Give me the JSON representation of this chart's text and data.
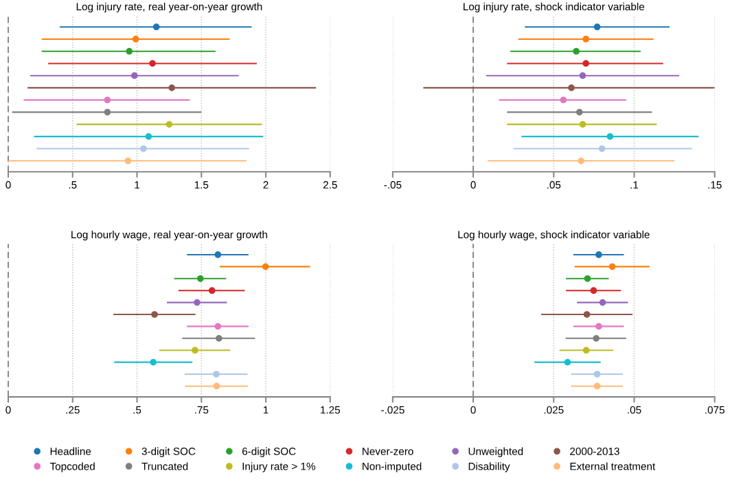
{
  "chart_data": [
    {
      "type": "scatter",
      "orientation": "horizontal",
      "title": "Log injury rate, real year-on-year growth",
      "categories": [
        null,
        null,
        null,
        null,
        null,
        null,
        null,
        null,
        null,
        null,
        null,
        null
      ],
      "xlim": [
        0,
        2.5
      ],
      "xticks": [
        0,
        {
          "value": 0.5,
          "label": ".5"
        },
        1,
        1.5,
        2,
        2.5
      ],
      "grid": "x",
      "tick_labels": "x",
      "marker": "circle",
      "legend": "bottom",
      "ref_lines": [
        {
          "axis": "x",
          "value": 0,
          "line_style": "dashed",
          "color": "#7f7f7f"
        }
      ],
      "series": [
        {
          "name": "Headline",
          "color": "#1f77b4",
          "values": [
            1.15,
            null,
            null,
            null,
            null,
            null,
            null,
            null,
            null,
            null,
            null,
            null
          ],
          "errors": [
            [
              0.4,
              1.89
            ],
            null,
            null,
            null,
            null,
            null,
            null,
            null,
            null,
            null,
            null,
            null
          ]
        },
        {
          "name": "3-digit SOC",
          "color": "#ff7f0e",
          "values": [
            null,
            0.99,
            null,
            null,
            null,
            null,
            null,
            null,
            null,
            null,
            null,
            null
          ],
          "errors": [
            null,
            [
              0.26,
              1.72
            ],
            null,
            null,
            null,
            null,
            null,
            null,
            null,
            null,
            null,
            null
          ]
        },
        {
          "name": "6-digit SOC",
          "color": "#2ca02c",
          "values": [
            null,
            null,
            0.94,
            null,
            null,
            null,
            null,
            null,
            null,
            null,
            null,
            null
          ],
          "errors": [
            null,
            null,
            [
              0.26,
              1.61
            ],
            null,
            null,
            null,
            null,
            null,
            null,
            null,
            null,
            null
          ]
        },
        {
          "name": "Never-zero",
          "color": "#d62728",
          "values": [
            null,
            null,
            null,
            1.12,
            null,
            null,
            null,
            null,
            null,
            null,
            null,
            null
          ],
          "errors": [
            null,
            null,
            null,
            [
              0.31,
              1.93
            ],
            null,
            null,
            null,
            null,
            null,
            null,
            null,
            null
          ]
        },
        {
          "name": "Unweighted",
          "color": "#9467bd",
          "values": [
            null,
            null,
            null,
            null,
            0.98,
            null,
            null,
            null,
            null,
            null,
            null,
            null
          ],
          "errors": [
            null,
            null,
            null,
            null,
            [
              0.17,
              1.79
            ],
            null,
            null,
            null,
            null,
            null,
            null,
            null
          ]
        },
        {
          "name": "2000-2013",
          "color": "#8c564b",
          "values": [
            null,
            null,
            null,
            null,
            null,
            1.27,
            null,
            null,
            null,
            null,
            null,
            null
          ],
          "errors": [
            null,
            null,
            null,
            null,
            null,
            [
              0.15,
              2.39
            ],
            null,
            null,
            null,
            null,
            null,
            null
          ]
        },
        {
          "name": "Topcoded",
          "color": "#e377c2",
          "values": [
            null,
            null,
            null,
            null,
            null,
            null,
            0.77,
            null,
            null,
            null,
            null,
            null
          ],
          "errors": [
            null,
            null,
            null,
            null,
            null,
            null,
            [
              0.12,
              1.41
            ],
            null,
            null,
            null,
            null,
            null
          ]
        },
        {
          "name": "Truncated",
          "color": "#7f7f7f",
          "values": [
            null,
            null,
            null,
            null,
            null,
            null,
            null,
            0.77,
            null,
            null,
            null,
            null
          ],
          "errors": [
            null,
            null,
            null,
            null,
            null,
            null,
            null,
            [
              0.03,
              1.5
            ],
            null,
            null,
            null,
            null
          ]
        },
        {
          "name": "Injury rate > 1%",
          "color": "#bcbd22",
          "values": [
            null,
            null,
            null,
            null,
            null,
            null,
            null,
            null,
            1.25,
            null,
            null,
            null
          ],
          "errors": [
            null,
            null,
            null,
            null,
            null,
            null,
            null,
            null,
            [
              0.53,
              1.97
            ],
            null,
            null,
            null
          ]
        },
        {
          "name": "Non-imputed",
          "color": "#17becf",
          "values": [
            null,
            null,
            null,
            null,
            null,
            null,
            null,
            null,
            null,
            1.09,
            null,
            null
          ],
          "errors": [
            null,
            null,
            null,
            null,
            null,
            null,
            null,
            null,
            null,
            [
              0.2,
              1.98
            ],
            null,
            null
          ]
        },
        {
          "name": "Disability",
          "color": "#aec7e8",
          "values": [
            null,
            null,
            null,
            null,
            null,
            null,
            null,
            null,
            null,
            null,
            1.05,
            null
          ],
          "errors": [
            null,
            null,
            null,
            null,
            null,
            null,
            null,
            null,
            null,
            null,
            [
              0.22,
              1.87
            ],
            null
          ]
        },
        {
          "name": "External treatment",
          "color": "#ffbb78",
          "values": [
            null,
            null,
            null,
            null,
            null,
            null,
            null,
            null,
            null,
            null,
            null,
            0.93
          ],
          "errors": [
            null,
            null,
            null,
            null,
            null,
            null,
            null,
            null,
            null,
            null,
            null,
            [
              0.0,
              1.85
            ]
          ]
        }
      ]
    },
    {
      "type": "scatter",
      "orientation": "horizontal",
      "title": "Log injury rate, shock indicator variable",
      "categories": [
        null,
        null,
        null,
        null,
        null,
        null,
        null,
        null,
        null,
        null,
        null,
        null
      ],
      "xlim": [
        -0.05,
        0.15
      ],
      "xticks": [
        {
          "value": -0.05,
          "label": "-.05"
        },
        0,
        {
          "value": 0.05,
          "label": ".05"
        },
        {
          "value": 0.1,
          "label": ".1"
        },
        {
          "value": 0.15,
          "label": ".15"
        }
      ],
      "grid": "x",
      "tick_labels": "x",
      "marker": "circle",
      "ref_lines": [
        {
          "axis": "x",
          "value": 0,
          "line_style": "dashed",
          "color": "#7f7f7f"
        }
      ],
      "series": [
        {
          "color": "#1f77b4",
          "values": [
            0.077,
            null,
            null,
            null,
            null,
            null,
            null,
            null,
            null,
            null,
            null,
            null
          ],
          "errors": [
            [
              0.032,
              0.122
            ],
            null,
            null,
            null,
            null,
            null,
            null,
            null,
            null,
            null,
            null,
            null
          ]
        },
        {
          "color": "#ff7f0e",
          "values": [
            null,
            0.07,
            null,
            null,
            null,
            null,
            null,
            null,
            null,
            null,
            null,
            null
          ],
          "errors": [
            null,
            [
              0.028,
              0.112
            ],
            null,
            null,
            null,
            null,
            null,
            null,
            null,
            null,
            null,
            null
          ]
        },
        {
          "color": "#2ca02c",
          "values": [
            null,
            null,
            0.064,
            null,
            null,
            null,
            null,
            null,
            null,
            null,
            null,
            null
          ],
          "errors": [
            null,
            null,
            [
              0.023,
              0.104
            ],
            null,
            null,
            null,
            null,
            null,
            null,
            null,
            null,
            null
          ]
        },
        {
          "color": "#d62728",
          "values": [
            null,
            null,
            null,
            0.07,
            null,
            null,
            null,
            null,
            null,
            null,
            null,
            null
          ],
          "errors": [
            null,
            null,
            null,
            [
              0.021,
              0.118
            ],
            null,
            null,
            null,
            null,
            null,
            null,
            null,
            null
          ]
        },
        {
          "color": "#9467bd",
          "values": [
            null,
            null,
            null,
            null,
            0.068,
            null,
            null,
            null,
            null,
            null,
            null,
            null
          ],
          "errors": [
            null,
            null,
            null,
            null,
            [
              0.008,
              0.128
            ],
            null,
            null,
            null,
            null,
            null,
            null,
            null
          ]
        },
        {
          "color": "#8c564b",
          "values": [
            null,
            null,
            null,
            null,
            null,
            0.061,
            null,
            null,
            null,
            null,
            null,
            null
          ],
          "errors": [
            null,
            null,
            null,
            null,
            null,
            [
              -0.031,
              0.15
            ],
            null,
            null,
            null,
            null,
            null,
            null
          ]
        },
        {
          "color": "#e377c2",
          "values": [
            null,
            null,
            null,
            null,
            null,
            null,
            0.056,
            null,
            null,
            null,
            null,
            null
          ],
          "errors": [
            null,
            null,
            null,
            null,
            null,
            null,
            [
              0.016,
              0.095
            ],
            null,
            null,
            null,
            null,
            null
          ]
        },
        {
          "color": "#7f7f7f",
          "values": [
            null,
            null,
            null,
            null,
            null,
            null,
            null,
            0.066,
            null,
            null,
            null,
            null
          ],
          "errors": [
            null,
            null,
            null,
            null,
            null,
            null,
            null,
            [
              0.021,
              0.111
            ],
            null,
            null,
            null,
            null
          ]
        },
        {
          "color": "#bcbd22",
          "values": [
            null,
            null,
            null,
            null,
            null,
            null,
            null,
            null,
            0.068,
            null,
            null,
            null
          ],
          "errors": [
            null,
            null,
            null,
            null,
            null,
            null,
            null,
            null,
            [
              0.021,
              0.114
            ],
            null,
            null,
            null
          ]
        },
        {
          "color": "#17becf",
          "values": [
            null,
            null,
            null,
            null,
            null,
            null,
            null,
            null,
            null,
            0.085,
            null,
            null
          ],
          "errors": [
            null,
            null,
            null,
            null,
            null,
            null,
            null,
            null,
            null,
            [
              0.03,
              0.14
            ],
            null,
            null
          ]
        },
        {
          "color": "#aec7e8",
          "values": [
            null,
            null,
            null,
            null,
            null,
            null,
            null,
            null,
            null,
            null,
            0.08,
            null
          ],
          "errors": [
            null,
            null,
            null,
            null,
            null,
            null,
            null,
            null,
            null,
            null,
            [
              0.025,
              0.136
            ],
            null
          ]
        },
        {
          "color": "#ffbb78",
          "values": [
            null,
            null,
            null,
            null,
            null,
            null,
            null,
            null,
            null,
            null,
            null,
            0.067
          ],
          "errors": [
            null,
            null,
            null,
            null,
            null,
            null,
            null,
            null,
            null,
            null,
            null,
            [
              0.009,
              0.125
            ]
          ]
        }
      ]
    },
    {
      "type": "scatter",
      "orientation": "horizontal",
      "title": "Log hourly wage, real year-on-year growth",
      "categories": [
        null,
        null,
        null,
        null,
        null,
        null,
        null,
        null,
        null,
        null,
        null,
        null
      ],
      "xlim": [
        0,
        1.25
      ],
      "xticks": [
        0,
        {
          "value": 0.25,
          "label": ".25"
        },
        {
          "value": 0.5,
          "label": ".5"
        },
        {
          "value": 0.75,
          "label": ".75"
        },
        1,
        1.25
      ],
      "grid": "x",
      "tick_labels": "x",
      "marker": "circle",
      "ref_lines": [
        {
          "axis": "x",
          "value": 0,
          "line_style": "dashed",
          "color": "#7f7f7f"
        }
      ],
      "series": [
        {
          "color": "#1f77b4",
          "values": [
            0.814,
            null,
            null,
            null,
            null,
            null,
            null,
            null,
            null,
            null,
            null,
            null
          ],
          "errors": [
            [
              0.694,
              0.933
            ],
            null,
            null,
            null,
            null,
            null,
            null,
            null,
            null,
            null,
            null,
            null
          ]
        },
        {
          "color": "#ff7f0e",
          "values": [
            null,
            0.999,
            null,
            null,
            null,
            null,
            null,
            null,
            null,
            null,
            null,
            null
          ],
          "errors": [
            null,
            [
              0.821,
              1.172
            ],
            null,
            null,
            null,
            null,
            null,
            null,
            null,
            null,
            null,
            null
          ]
        },
        {
          "color": "#2ca02c",
          "values": [
            null,
            null,
            0.746,
            null,
            null,
            null,
            null,
            null,
            null,
            null,
            null,
            null
          ],
          "errors": [
            null,
            null,
            [
              0.644,
              0.846
            ],
            null,
            null,
            null,
            null,
            null,
            null,
            null,
            null,
            null
          ]
        },
        {
          "color": "#d62728",
          "values": [
            null,
            null,
            null,
            0.791,
            null,
            null,
            null,
            null,
            null,
            null,
            null,
            null
          ],
          "errors": [
            null,
            null,
            null,
            [
              0.661,
              0.918
            ],
            null,
            null,
            null,
            null,
            null,
            null,
            null,
            null
          ]
        },
        {
          "color": "#9467bd",
          "values": [
            null,
            null,
            null,
            null,
            0.733,
            null,
            null,
            null,
            null,
            null,
            null,
            null
          ],
          "errors": [
            null,
            null,
            null,
            null,
            [
              0.616,
              0.849
            ],
            null,
            null,
            null,
            null,
            null,
            null,
            null
          ]
        },
        {
          "color": "#8c564b",
          "values": [
            null,
            null,
            null,
            null,
            null,
            0.568,
            null,
            null,
            null,
            null,
            null,
            null
          ],
          "errors": [
            null,
            null,
            null,
            null,
            null,
            [
              0.408,
              0.727
            ],
            null,
            null,
            null,
            null,
            null,
            null
          ]
        },
        {
          "color": "#e377c2",
          "values": [
            null,
            null,
            null,
            null,
            null,
            null,
            0.814,
            null,
            null,
            null,
            null,
            null
          ],
          "errors": [
            null,
            null,
            null,
            null,
            null,
            null,
            [
              0.694,
              0.933
            ],
            null,
            null,
            null,
            null,
            null
          ]
        },
        {
          "color": "#7f7f7f",
          "values": [
            null,
            null,
            null,
            null,
            null,
            null,
            null,
            0.818,
            null,
            null,
            null,
            null
          ],
          "errors": [
            null,
            null,
            null,
            null,
            null,
            null,
            null,
            [
              0.675,
              0.958
            ],
            null,
            null,
            null,
            null
          ]
        },
        {
          "color": "#bcbd22",
          "values": [
            null,
            null,
            null,
            null,
            null,
            null,
            null,
            null,
            0.725,
            null,
            null,
            null
          ],
          "errors": [
            null,
            null,
            null,
            null,
            null,
            null,
            null,
            null,
            [
              0.586,
              0.862
            ],
            null,
            null,
            null
          ]
        },
        {
          "color": "#17becf",
          "values": [
            null,
            null,
            null,
            null,
            null,
            null,
            null,
            null,
            null,
            0.563,
            null,
            null
          ],
          "errors": [
            null,
            null,
            null,
            null,
            null,
            null,
            null,
            null,
            null,
            [
              0.411,
              0.715
            ],
            null,
            null
          ]
        },
        {
          "color": "#aec7e8",
          "values": [
            null,
            null,
            null,
            null,
            null,
            null,
            null,
            null,
            null,
            null,
            0.808,
            null
          ],
          "errors": [
            null,
            null,
            null,
            null,
            null,
            null,
            null,
            null,
            null,
            null,
            [
              0.685,
              0.929
            ],
            null
          ]
        },
        {
          "color": "#ffbb78",
          "values": [
            null,
            null,
            null,
            null,
            null,
            null,
            null,
            null,
            null,
            null,
            null,
            0.809
          ],
          "errors": [
            null,
            null,
            null,
            null,
            null,
            null,
            null,
            null,
            null,
            null,
            null,
            [
              0.686,
              0.93
            ]
          ]
        }
      ]
    },
    {
      "type": "scatter",
      "orientation": "horizontal",
      "title": "Log hourly wage, shock indicator variable",
      "categories": [
        null,
        null,
        null,
        null,
        null,
        null,
        null,
        null,
        null,
        null,
        null,
        null
      ],
      "xlim": [
        -0.025,
        0.075
      ],
      "xticks": [
        {
          "value": -0.025,
          "label": "-.025"
        },
        0,
        {
          "value": 0.025,
          "label": ".025"
        },
        {
          "value": 0.05,
          "label": ".05"
        },
        {
          "value": 0.075,
          "label": ".075"
        }
      ],
      "grid": "x",
      "tick_labels": "x",
      "marker": "circle",
      "ref_lines": [
        {
          "axis": "x",
          "value": 0,
          "line_style": "dashed",
          "color": "#7f7f7f"
        }
      ],
      "series": [
        {
          "color": "#1f77b4",
          "values": [
            0.039,
            null,
            null,
            null,
            null,
            null,
            null,
            null,
            null,
            null,
            null,
            null
          ],
          "errors": [
            [
              0.0311,
              0.0468
            ],
            null,
            null,
            null,
            null,
            null,
            null,
            null,
            null,
            null,
            null,
            null
          ]
        },
        {
          "color": "#ff7f0e",
          "values": [
            null,
            0.0432,
            null,
            null,
            null,
            null,
            null,
            null,
            null,
            null,
            null,
            null
          ],
          "errors": [
            null,
            [
              0.0315,
              0.0548
            ],
            null,
            null,
            null,
            null,
            null,
            null,
            null,
            null,
            null,
            null
          ]
        },
        {
          "color": "#2ca02c",
          "values": [
            null,
            null,
            0.0355,
            null,
            null,
            null,
            null,
            null,
            null,
            null,
            null,
            null
          ],
          "errors": [
            null,
            null,
            [
              0.0288,
              0.0421
            ],
            null,
            null,
            null,
            null,
            null,
            null,
            null,
            null,
            null
          ]
        },
        {
          "color": "#d62728",
          "values": [
            null,
            null,
            null,
            0.0374,
            null,
            null,
            null,
            null,
            null,
            null,
            null,
            null
          ],
          "errors": [
            null,
            null,
            null,
            [
              0.0288,
              0.0459
            ],
            null,
            null,
            null,
            null,
            null,
            null,
            null,
            null
          ]
        },
        {
          "color": "#9467bd",
          "values": [
            null,
            null,
            null,
            null,
            0.0402,
            null,
            null,
            null,
            null,
            null,
            null,
            null
          ],
          "errors": [
            null,
            null,
            null,
            null,
            [
              0.0322,
              0.0481
            ],
            null,
            null,
            null,
            null,
            null,
            null,
            null
          ]
        },
        {
          "color": "#8c564b",
          "values": [
            null,
            null,
            null,
            null,
            null,
            0.0353,
            null,
            null,
            null,
            null,
            null,
            null
          ],
          "errors": [
            null,
            null,
            null,
            null,
            null,
            [
              0.0211,
              0.0495
            ],
            null,
            null,
            null,
            null,
            null,
            null
          ]
        },
        {
          "color": "#e377c2",
          "values": [
            null,
            null,
            null,
            null,
            null,
            null,
            0.039,
            null,
            null,
            null,
            null,
            null
          ],
          "errors": [
            null,
            null,
            null,
            null,
            null,
            null,
            [
              0.0311,
              0.0468
            ],
            null,
            null,
            null,
            null,
            null
          ]
        },
        {
          "color": "#7f7f7f",
          "values": [
            null,
            null,
            null,
            null,
            null,
            null,
            null,
            0.0382,
            null,
            null,
            null,
            null
          ],
          "errors": [
            null,
            null,
            null,
            null,
            null,
            null,
            null,
            [
              0.0287,
              0.0475
            ],
            null,
            null,
            null,
            null
          ]
        },
        {
          "color": "#bcbd22",
          "values": [
            null,
            null,
            null,
            null,
            null,
            null,
            null,
            null,
            0.0351,
            null,
            null,
            null
          ],
          "errors": [
            null,
            null,
            null,
            null,
            null,
            null,
            null,
            null,
            [
              0.0268,
              0.0435
            ],
            null,
            null,
            null
          ]
        },
        {
          "color": "#17becf",
          "values": [
            null,
            null,
            null,
            null,
            null,
            null,
            null,
            null,
            null,
            0.0293,
            null,
            null
          ],
          "errors": [
            null,
            null,
            null,
            null,
            null,
            null,
            null,
            null,
            null,
            [
              0.019,
              0.0396
            ],
            null,
            null
          ]
        },
        {
          "color": "#aec7e8",
          "values": [
            null,
            null,
            null,
            null,
            null,
            null,
            null,
            null,
            null,
            null,
            0.0385,
            null
          ],
          "errors": [
            null,
            null,
            null,
            null,
            null,
            null,
            null,
            null,
            null,
            null,
            [
              0.0304,
              0.0465
            ],
            null
          ]
        },
        {
          "color": "#ffbb78",
          "values": [
            null,
            null,
            null,
            null,
            null,
            null,
            null,
            null,
            null,
            null,
            null,
            0.0385
          ],
          "errors": [
            null,
            null,
            null,
            null,
            null,
            null,
            null,
            null,
            null,
            null,
            null,
            [
              0.0304,
              0.0465
            ]
          ]
        }
      ]
    }
  ]
}
